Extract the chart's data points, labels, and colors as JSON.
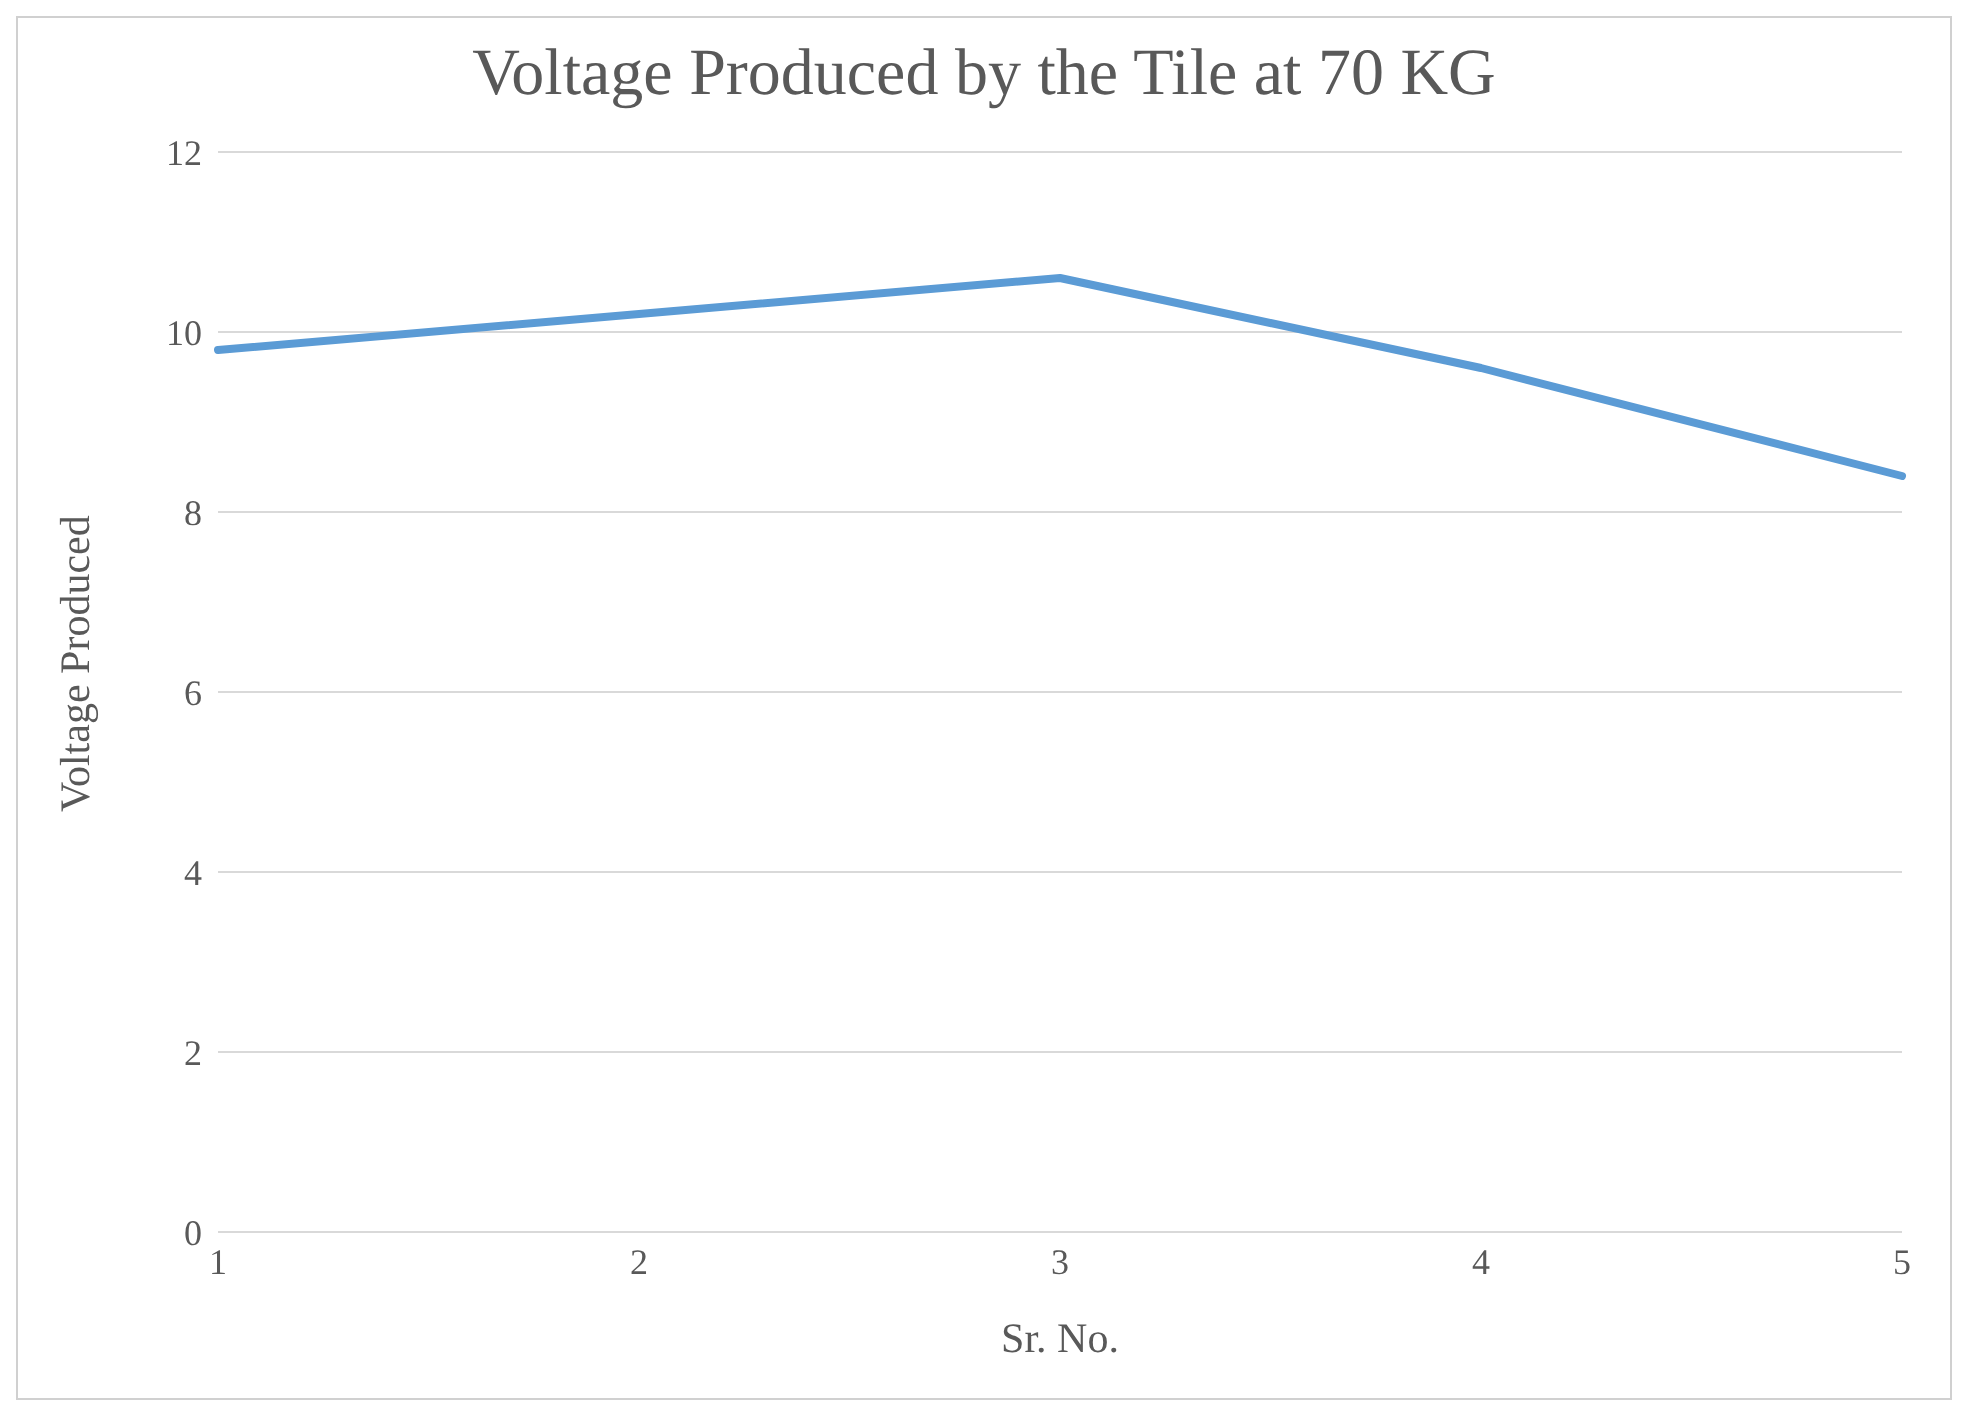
{
  "chart_data": {
    "type": "line",
    "title": "Voltage Produced by the Tile at 70 KG",
    "xlabel": "Sr. No.",
    "ylabel": "Voltage Produced",
    "categories": [
      "1",
      "2",
      "3",
      "4",
      "5"
    ],
    "series": [
      {
        "color": "#5b9bd5",
        "values": [
          9.8,
          10.2,
          10.6,
          9.6,
          8.4
        ]
      }
    ],
    "ylim": [
      0,
      12
    ],
    "yticks": [
      0,
      2,
      4,
      6,
      8,
      10,
      12
    ],
    "grid": "y",
    "legend": false,
    "marker": "none",
    "line_style": "solid"
  }
}
